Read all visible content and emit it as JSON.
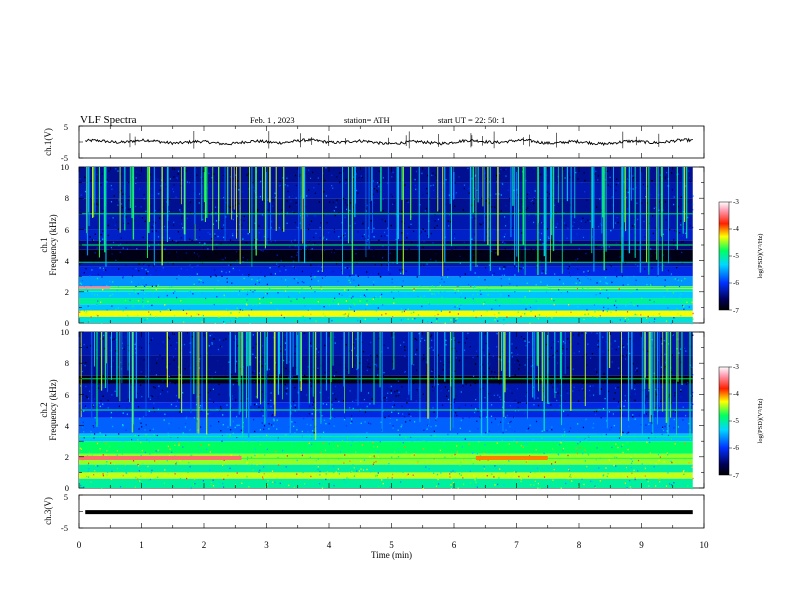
{
  "header": {
    "title": "VLF  Spectra",
    "date": "Feb. 1  , 2023",
    "station": "station= ATH",
    "start": "start  UT  =    22: 50: 1"
  },
  "chart_data": [
    {
      "type": "line",
      "name": "ch1-waveform",
      "ylabel": "ch.1(V)",
      "ylim": [
        -5,
        5
      ],
      "yticks": [
        "5",
        "-5"
      ],
      "xlim": [
        0,
        10
      ],
      "baseline_value": 0,
      "trace": "noisy waveform near 0 V with occasional spikes"
    },
    {
      "type": "heatmap",
      "name": "ch1-spectrogram",
      "channel_label": "ch.1",
      "ylabel": "Frequency  (kHz)",
      "ylim": [
        0,
        10
      ],
      "yticks": [
        "0",
        "2",
        "4",
        "6",
        "8",
        "10"
      ],
      "xlim": [
        0,
        10
      ],
      "data_end_min": 9.82,
      "colorbar": {
        "label": "log(PSD)(V²/Hz)",
        "range": [
          -7,
          -3
        ],
        "ticks": [
          "-3",
          "-4",
          "-5",
          "-6",
          "-7"
        ]
      },
      "bands": [
        {
          "f0": 0.0,
          "f1": 0.4,
          "level": -5.2
        },
        {
          "f0": 0.4,
          "f1": 0.8,
          "level": -4.3
        },
        {
          "f0": 0.8,
          "f1": 1.2,
          "level": -5.4
        },
        {
          "f0": 1.2,
          "f1": 1.6,
          "level": -5.0
        },
        {
          "f0": 1.6,
          "f1": 2.0,
          "level": -5.4
        },
        {
          "f0": 2.0,
          "f1": 2.2,
          "level": -5.1
        },
        {
          "f0": 2.2,
          "f1": 2.35,
          "level": -4.4
        },
        {
          "f0": 2.35,
          "f1": 3.0,
          "level": -5.6
        },
        {
          "f0": 3.0,
          "f1": 3.6,
          "level": -6.1
        },
        {
          "f0": 3.6,
          "f1": 3.9,
          "level": -6.3
        },
        {
          "f0": 3.9,
          "f1": 4.7,
          "level": -6.9
        },
        {
          "f0": 4.7,
          "f1": 5.3,
          "level": -6.5
        },
        {
          "f0": 5.3,
          "f1": 6.0,
          "level": -6.2
        },
        {
          "f0": 6.0,
          "f1": 7.0,
          "level": -6.3
        },
        {
          "f0": 7.0,
          "f1": 8.0,
          "level": -6.4
        },
        {
          "f0": 8.0,
          "f1": 9.0,
          "level": -6.3
        },
        {
          "f0": 9.0,
          "f1": 10.0,
          "level": -6.4
        }
      ],
      "tones_khz": [
        2.28,
        3.9,
        5.0,
        7.0
      ],
      "strong_segments": [
        {
          "t0": 0.0,
          "t1": 0.5,
          "f0": 2.2,
          "f1": 2.35,
          "level": -3.4
        },
        {
          "t0": 6.35,
          "t1": 7.5,
          "f0": 2.2,
          "f1": 2.35,
          "level": -4.6
        }
      ]
    },
    {
      "type": "heatmap",
      "name": "ch2-spectrogram",
      "channel_label": "ch.2",
      "ylabel": "Frequency  (kHz)",
      "ylim": [
        0,
        10
      ],
      "yticks": [
        "0",
        "2",
        "4",
        "6",
        "8",
        "10"
      ],
      "xlim": [
        0,
        10
      ],
      "data_end_min": 9.82,
      "colorbar": {
        "label": "log(PSD)(V²/Hz)",
        "range": [
          -7,
          -3
        ],
        "ticks": [
          "-3",
          "-4",
          "-5",
          "-6",
          "-7"
        ]
      },
      "bands": [
        {
          "f0": 0.0,
          "f1": 0.6,
          "level": -5.0
        },
        {
          "f0": 0.6,
          "f1": 1.0,
          "level": -4.4
        },
        {
          "f0": 1.0,
          "f1": 1.5,
          "level": -5.0
        },
        {
          "f0": 1.5,
          "f1": 2.2,
          "level": -4.5
        },
        {
          "f0": 2.2,
          "f1": 3.0,
          "level": -4.8
        },
        {
          "f0": 3.0,
          "f1": 3.5,
          "level": -5.4
        },
        {
          "f0": 3.5,
          "f1": 4.5,
          "level": -5.8
        },
        {
          "f0": 4.5,
          "f1": 5.5,
          "level": -6.1
        },
        {
          "f0": 5.5,
          "f1": 6.7,
          "level": -6.3
        },
        {
          "f0": 6.7,
          "f1": 7.2,
          "level": -6.9
        },
        {
          "f0": 7.2,
          "f1": 8.5,
          "level": -6.4
        },
        {
          "f0": 8.5,
          "f1": 10.0,
          "level": -6.3
        }
      ],
      "tones_khz": [
        1.9,
        3.3,
        5.0,
        7.0
      ],
      "strong_segments": [
        {
          "t0": 0.0,
          "t1": 2.6,
          "f0": 1.8,
          "f1": 2.05,
          "level": -3.5
        },
        {
          "t0": 6.35,
          "t1": 7.5,
          "f0": 1.8,
          "f1": 2.05,
          "level": -4.0
        }
      ]
    },
    {
      "type": "line",
      "name": "ch3-waveform",
      "ylabel": "ch.3(V)",
      "ylim": [
        -5,
        5
      ],
      "yticks": [
        "5",
        "-5"
      ],
      "xlim": [
        0,
        10
      ],
      "constant_value": -0.2,
      "xlabel": "Time  (min)",
      "xticks": [
        "0",
        "1",
        "2",
        "3",
        "4",
        "5",
        "6",
        "7",
        "8",
        "9",
        "10"
      ]
    }
  ]
}
